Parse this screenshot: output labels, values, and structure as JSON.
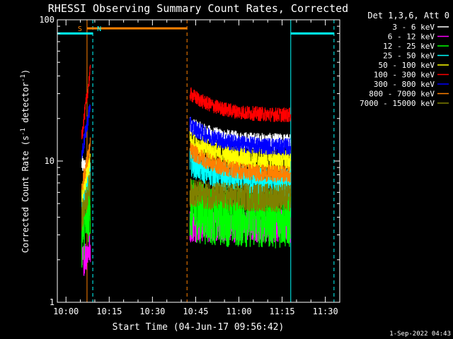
{
  "chart_data": {
    "type": "line",
    "title": "RHESSI Observing Summary Count Rates, Corrected",
    "xlabel": "Start Time (04-Jun-17 09:56:42)",
    "ylabel_main": "Corrected Count Rate (s",
    "ylabel_sup1": "-1",
    "ylabel_mid": " detector",
    "ylabel_sup2": "-1",
    "ylabel_end": ")",
    "yscale": "log",
    "xlim_minutes": [
      -3,
      37
    ],
    "ylim": [
      1,
      100
    ],
    "x_ticks": [
      {
        "label": "10:00",
        "min": 0
      },
      {
        "label": "10:15",
        "min": 15
      },
      {
        "label": "10:30",
        "min": 30
      },
      {
        "label": "10:45",
        "min": 45
      },
      {
        "label": "11:00",
        "min": 60
      },
      {
        "label": "11:15",
        "min": 75
      },
      {
        "label": "11:30",
        "min": 90
      }
    ],
    "y_ticks": [
      {
        "label": "1",
        "value": 1
      },
      {
        "label": "10",
        "value": 10
      },
      {
        "label": "100",
        "value": 100
      }
    ],
    "x_minutes_full": [
      -3,
      95
    ],
    "legend_title": "Det 1,3,6, Att 0",
    "legend_placement": "right",
    "series": [
      {
        "name": "3 - 6 keV",
        "color": "#ffffff",
        "seg1": [
          9.5,
          8.5
        ],
        "seg2": [
          18.0,
          13.5
        ],
        "noise": 0.06
      },
      {
        "name": "6 - 12 keV",
        "color": "#ff00ff",
        "seg1": [
          1.9,
          2.5
        ],
        "seg2": [
          3.5,
          3.5
        ],
        "noise": 0.12
      },
      {
        "name": "12 - 25 keV",
        "color": "#00ff00",
        "seg1": [
          2.8,
          5.0
        ],
        "seg2": [
          4.5,
          4.0
        ],
        "noise": 0.22
      },
      {
        "name": "25 - 50 keV",
        "color": "#00ffff",
        "seg1": [
          4.5,
          9.0
        ],
        "seg2": [
          10.0,
          7.0
        ],
        "noise": 0.1
      },
      {
        "name": "50 - 100 keV",
        "color": "#ffff00",
        "seg1": [
          5.5,
          10.5
        ],
        "seg2": [
          14.0,
          10.0
        ],
        "noise": 0.08
      },
      {
        "name": "100 - 300 keV",
        "color": "#ff0000",
        "seg1": [
          15.0,
          44.0
        ],
        "seg2": [
          30.0,
          21.0
        ],
        "noise": 0.05
      },
      {
        "name": "300 - 800 keV",
        "color": "#0000ff",
        "seg1": [
          11.0,
          25.0
        ],
        "seg2": [
          18.0,
          12.5
        ],
        "noise": 0.06
      },
      {
        "name": "800 - 7000 keV",
        "color": "#ff8000",
        "seg1": [
          6.5,
          13.0
        ],
        "seg2": [
          12.0,
          8.0
        ],
        "noise": 0.06
      },
      {
        "name": "7000 - 15000 keV",
        "color": "#808000",
        "seg1": [
          4.0,
          7.0
        ],
        "seg2": [
          6.0,
          5.5
        ],
        "noise": 0.1
      }
    ],
    "seg1_range_min": [
      5.5,
      8.5
    ],
    "seg2_range_min": [
      43.0,
      78.0
    ],
    "event_lines": [
      {
        "min": -3.0,
        "color": "#00ffff",
        "style": "solid"
      },
      {
        "min": 7.3,
        "color": "#ff8000",
        "style": "solid"
      },
      {
        "min": 9.3,
        "color": "#00ffff",
        "style": "dashed"
      },
      {
        "min": 42.0,
        "color": "#ff8000",
        "style": "dashed"
      },
      {
        "min": 78.0,
        "color": "#00ffff",
        "style": "solid"
      },
      {
        "min": 93.0,
        "color": "#00ffff",
        "style": "dashed"
      }
    ],
    "event_bars": [
      {
        "from": -3.0,
        "to": 9.3,
        "color": "#00ffff",
        "level": 80
      },
      {
        "from": 7.3,
        "to": 42.0,
        "color": "#ff8000",
        "level": 87
      },
      {
        "from": 78.0,
        "to": 93.0,
        "color": "#00ffff",
        "level": 80
      }
    ],
    "flags": [
      {
        "label": "S",
        "min": 7.3,
        "color": "#ff8000"
      },
      {
        "label": "N",
        "min": 9.3,
        "color": "#00ffff"
      }
    ]
  },
  "footer_date": "1-Sep-2022 04:43"
}
